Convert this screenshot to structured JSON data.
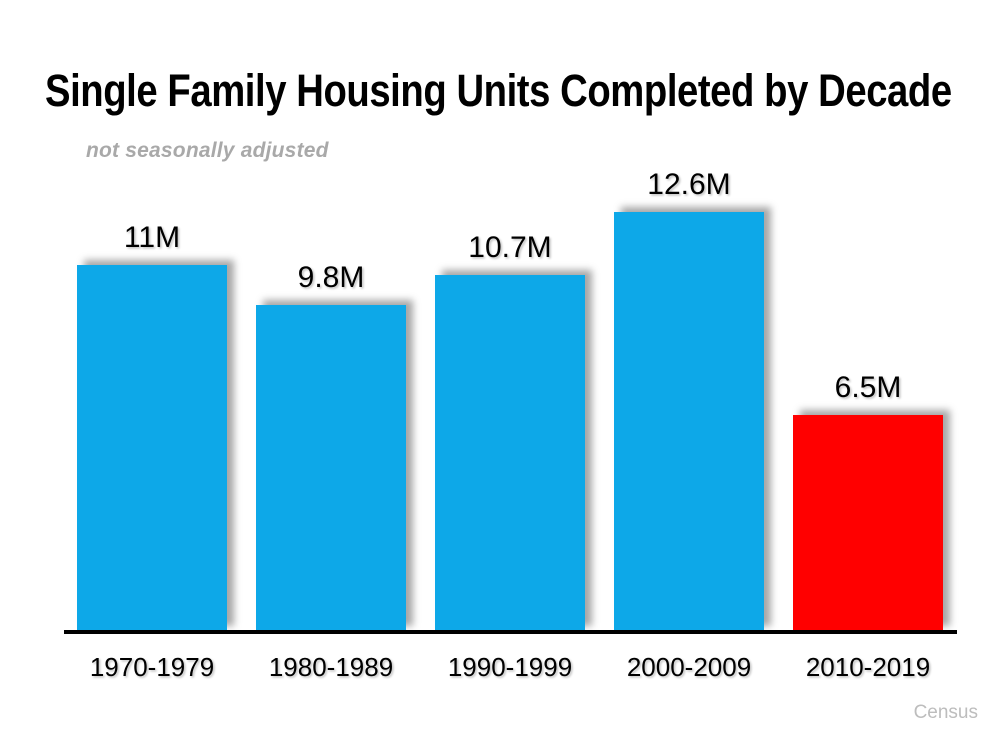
{
  "chart_data": {
    "type": "bar",
    "title": "Single Family Housing Units Completed by Decade",
    "subtitle": "not seasonally adjusted",
    "source": "Census",
    "categories": [
      "1970-1979",
      "1980-1989",
      "1990-1999",
      "2000-2009",
      "2010-2019"
    ],
    "values": [
      11,
      9.8,
      10.7,
      12.6,
      6.5
    ],
    "value_labels": [
      "11M",
      "9.8M",
      "10.7M",
      "12.6M",
      "6.5M"
    ],
    "series_name": "Single family housing units completed (millions)",
    "bar_colors": [
      "#0DA8E8",
      "#0DA8E8",
      "#0DA8E8",
      "#0DA8E8",
      "#FF0000"
    ],
    "bar_color_default": "#0DA8E8",
    "highlight_color": "#FF0000",
    "axis_color": "#000000",
    "title_color": "#000000",
    "subtitle_color": "#A9A9A9",
    "source_color": "#BDBDBD",
    "ylim": [
      0,
      13
    ],
    "grid": false,
    "legend": false,
    "y_axis_ticks_shown": false
  }
}
